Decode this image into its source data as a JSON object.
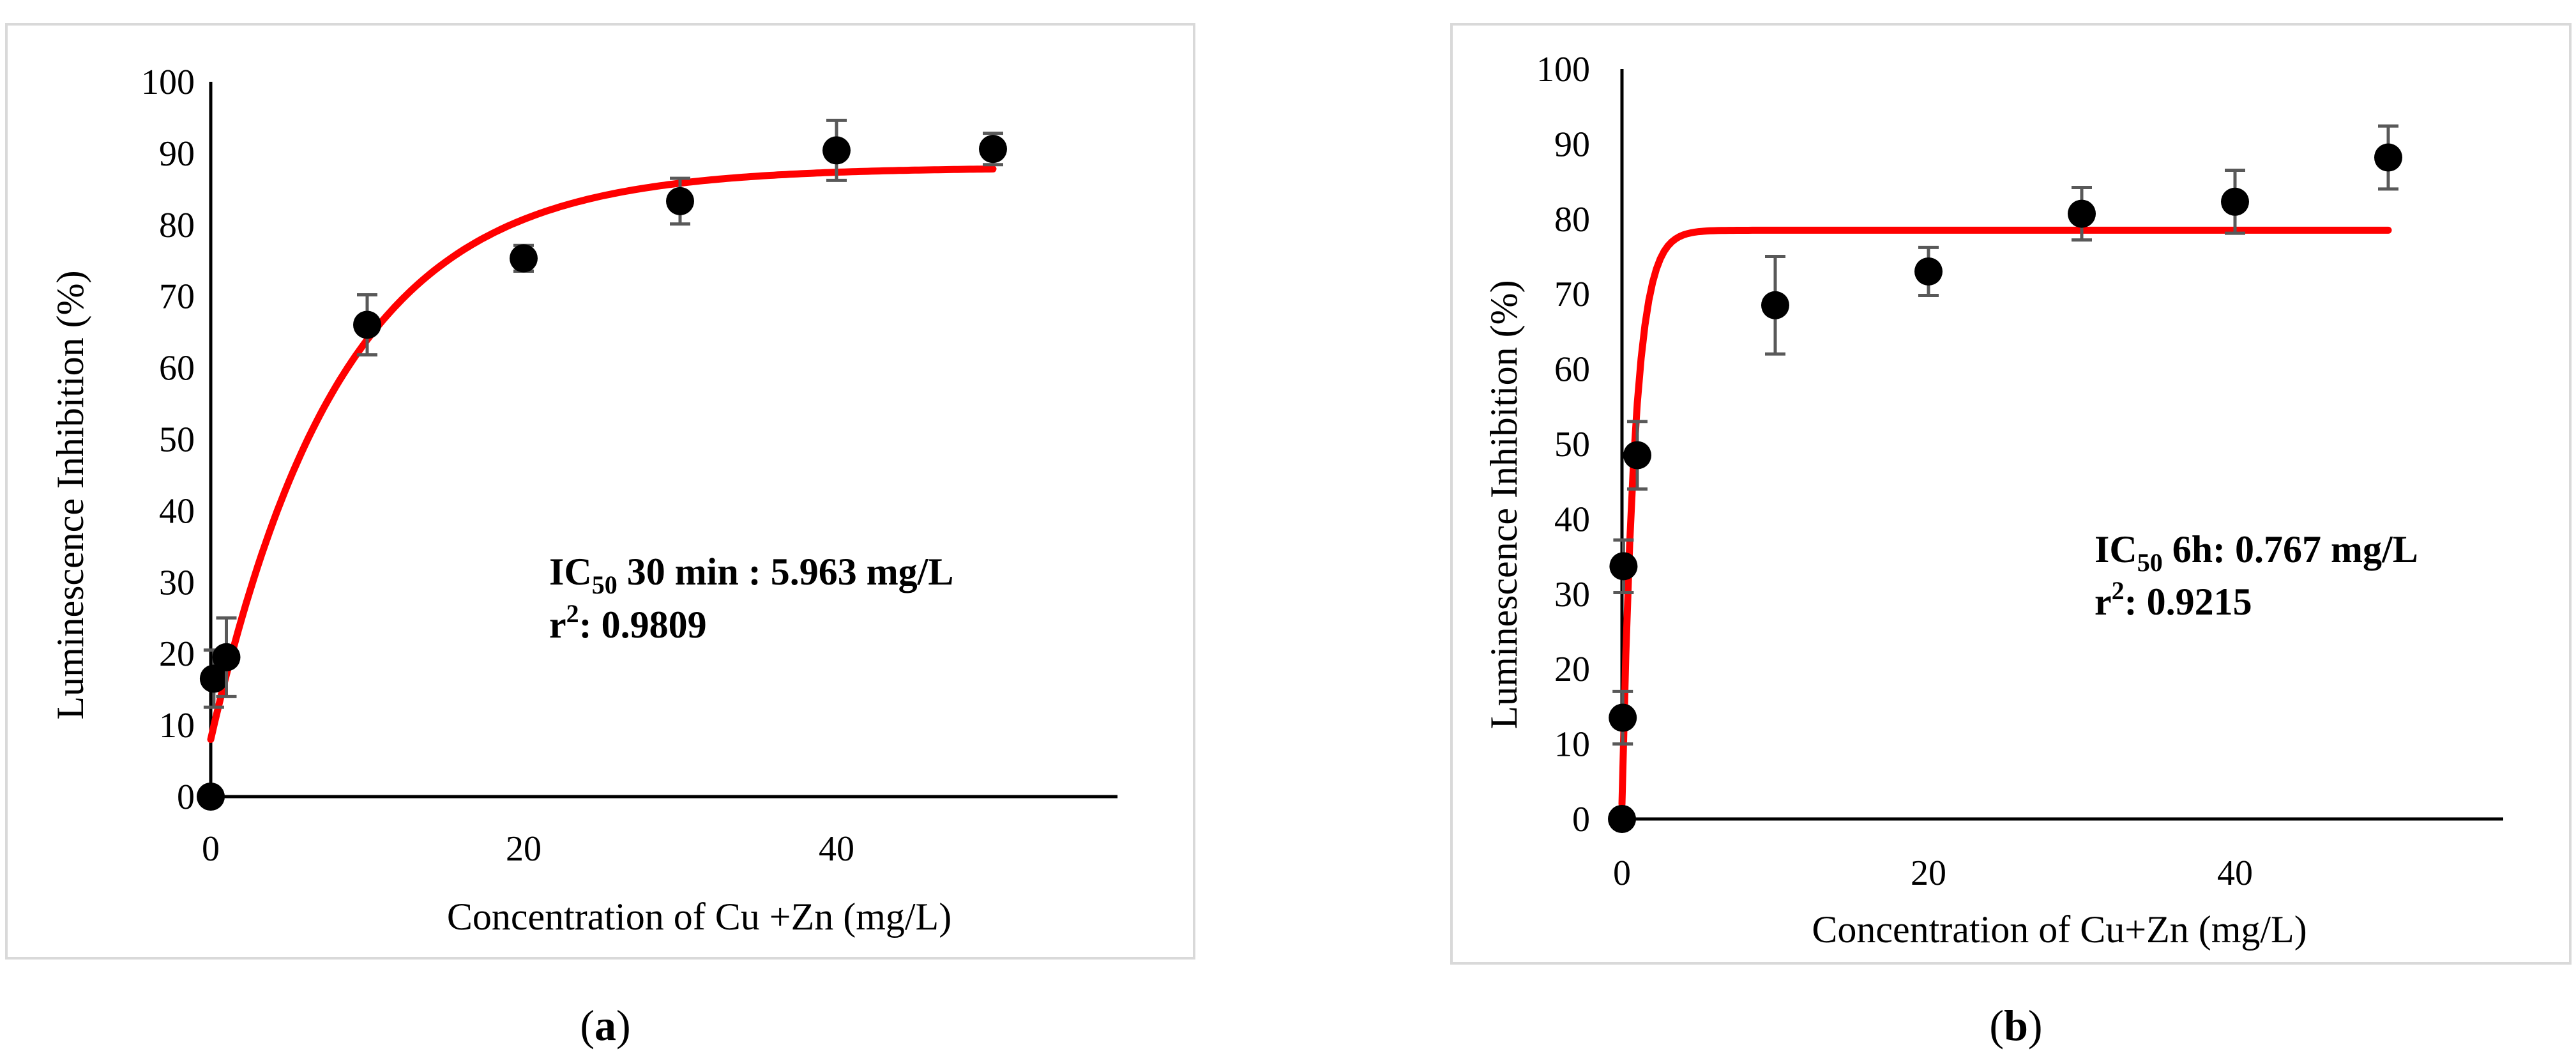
{
  "chart_data": [
    {
      "type": "scatter",
      "panel_label": "a",
      "xlabel": "Concentration of Cu +Zn  (mg/L)",
      "ylabel": "Luminescence Inhibition (%)",
      "xlim": [
        0,
        57
      ],
      "ylim": [
        0,
        100
      ],
      "x_ticks": [
        "0",
        "20",
        "40"
      ],
      "y_ticks": [
        "0",
        "10",
        "20",
        "30",
        "40",
        "50",
        "60",
        "70",
        "80",
        "90",
        "100"
      ],
      "series": [
        {
          "name": "measured",
          "x": [
            0,
            0.2,
            1,
            10,
            20,
            30,
            40,
            50
          ],
          "y": [
            0,
            16.5,
            19.5,
            66,
            75.3,
            83.3,
            90.4,
            90.6
          ],
          "yerr": [
            0,
            4,
            5.5,
            4.2,
            1.8,
            3.2,
            4.2,
            2.2
          ]
        }
      ],
      "fit": {
        "name": "fitted curve",
        "x0": 0,
        "x1": 50,
        "ymin": 8,
        "ymax": 88,
        "rate": 0.12
      },
      "annotation": {
        "ic_prefix": "IC",
        "ic_sub": "50",
        "ic_rest": " 30 min : 5.963 mg/L",
        "r_prefix": "r",
        "r_sup": "2",
        "r_rest": ": 0.9809"
      }
    },
    {
      "type": "scatter",
      "panel_label": "b",
      "xlabel": "Concentration of Cu+Zn  (mg/L)",
      "ylabel": "Luminescence Inhibition (%)",
      "xlim": [
        0,
        57
      ],
      "ylim": [
        0,
        100
      ],
      "x_ticks": [
        "0",
        "20",
        "40"
      ],
      "y_ticks": [
        "0",
        "10",
        "20",
        "30",
        "40",
        "50",
        "60",
        "70",
        "80",
        "90",
        "100"
      ],
      "series": [
        {
          "name": "measured",
          "x": [
            0,
            0.05,
            0.1,
            1,
            10,
            20,
            30,
            40,
            50
          ],
          "y": [
            0,
            13.5,
            33.7,
            48.5,
            68.5,
            73,
            80.7,
            82.3,
            88.2
          ],
          "yerr": [
            0,
            3.5,
            3.5,
            4.5,
            6.5,
            3.2,
            3.5,
            4.2,
            4.2
          ]
        }
      ],
      "fit": {
        "name": "fitted curve",
        "x0": 0,
        "x1": 50,
        "ymin": 2,
        "ymax": 78.5,
        "rate": 1.2
      },
      "annotation": {
        "ic_prefix": "IC",
        "ic_sub": "50",
        "ic_rest": "  6h: 0.767 mg/L",
        "r_prefix": "r",
        "r_sup": "2",
        "r_rest": ": 0.9215"
      }
    }
  ],
  "captions": [
    {
      "open": "(",
      "label": "a",
      "close": ")"
    },
    {
      "open": "(",
      "label": "b",
      "close": ")"
    }
  ]
}
